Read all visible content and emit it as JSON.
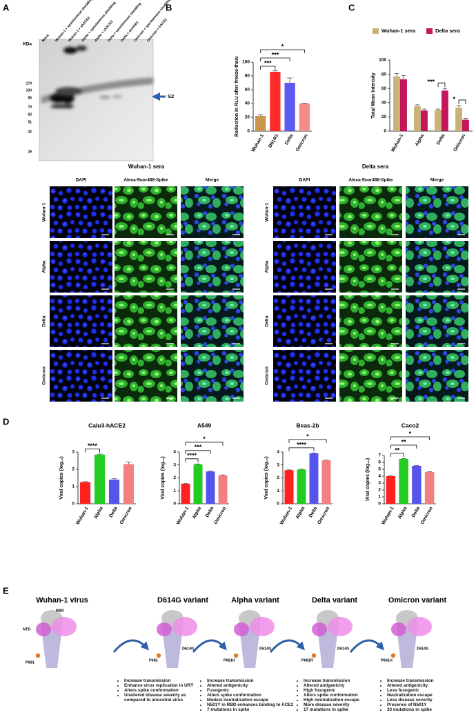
{
  "panel_labels": [
    "A",
    "B",
    "C",
    "D",
    "E"
  ],
  "blot": {
    "kda_label": "KDa",
    "lanes": [
      "Mock",
      "Wuhan-1 + spontaneous shedding",
      "Wuhan-1 + shACE2",
      "Alpha + spontaneous shedding",
      "Alpha + shACE2",
      "Delta + spontaneous shedding",
      "Delta + shACE2",
      "Omicron + spontaneous shedding",
      "Omicron + hACE2"
    ],
    "markers": [
      170,
      130,
      95,
      70,
      62,
      51,
      42,
      29
    ],
    "band_label": "S2"
  },
  "chart_data": [
    {
      "type": "bar",
      "ylabel": "Reduction in RLU after freeze-thaw",
      "categories": [
        "Wuhan-1",
        "D614G",
        "Delta",
        "Omicron"
      ],
      "values": [
        22,
        86,
        70,
        40
      ],
      "errors": [
        2,
        1.5,
        7,
        0.5
      ],
      "colors": [
        "#c8954a",
        "#ff2a2a",
        "#5a5af0",
        "#f58a8a"
      ],
      "ylim": [
        0,
        100
      ],
      "yticks": [
        0,
        20,
        40,
        60,
        80,
        100
      ],
      "comparisons": [
        {
          "from": 0,
          "to": 1,
          "label": "***"
        },
        {
          "from": 0,
          "to": 2,
          "label": "***"
        },
        {
          "from": 0,
          "to": 3,
          "label": "*"
        }
      ]
    },
    {
      "type": "grouped_bar",
      "ylabel": "Total Mean Intensity",
      "categories": [
        "Wuhan-1",
        "Alpha",
        "Delta",
        "Omicron"
      ],
      "series": [
        {
          "name": "Wuhan-1 sera",
          "color": "#c9b277",
          "values": [
            77,
            35,
            30,
            33
          ],
          "errors": [
            4,
            2,
            1,
            3
          ]
        },
        {
          "name": "Delta sera",
          "color": "#c2185b",
          "values": [
            73,
            29,
            57,
            16
          ],
          "errors": [
            5,
            2,
            3,
            2
          ]
        }
      ],
      "ylim": [
        0,
        100
      ],
      "yticks": [
        0,
        20,
        40,
        60,
        80,
        100
      ],
      "comparisons": [
        {
          "category": 2,
          "label": "***"
        },
        {
          "category": 3,
          "label": "*"
        }
      ]
    },
    {
      "type": "bar",
      "title": "Calu3-hACE2",
      "ylabel": "Viral copies (log₁₀)",
      "categories": [
        "Wuhan-1",
        "Alpha",
        "Delta",
        "Omicron"
      ],
      "values": [
        1.25,
        2.85,
        1.4,
        2.3
      ],
      "errors": [
        0.03,
        0.03,
        0.05,
        0.12
      ],
      "colors": [
        "#ff2020",
        "#22cc22",
        "#5555ee",
        "#f28080"
      ],
      "ylim": [
        0,
        3
      ],
      "yticks": [
        0,
        1,
        2,
        3
      ],
      "comparisons": [
        {
          "from": 0,
          "to": 1,
          "label": "****"
        }
      ]
    },
    {
      "type": "bar",
      "title": "A549",
      "ylabel": "Viral copies (log₁₀)",
      "categories": [
        "Wuhan-1",
        "Alpha",
        "Delta",
        "Omicron"
      ],
      "values": [
        1.55,
        3.05,
        2.5,
        2.2
      ],
      "errors": [
        0.02,
        0.03,
        0.03,
        0.03
      ],
      "colors": [
        "#ff2020",
        "#22cc22",
        "#5555ee",
        "#f28080"
      ],
      "ylim": [
        0,
        4
      ],
      "yticks": [
        0,
        1,
        2,
        3,
        4
      ],
      "comparisons": [
        {
          "from": 0,
          "to": 1,
          "label": "****"
        },
        {
          "from": 0,
          "to": 2,
          "label": "***"
        },
        {
          "from": 0,
          "to": 3,
          "label": "*"
        }
      ]
    },
    {
      "type": "bar",
      "title": "Beas-2b",
      "ylabel": "Viral copies (log₁₀)",
      "categories": [
        "Wuhan-1",
        "Alpha",
        "Delta",
        "Omicron"
      ],
      "values": [
        2.6,
        2.65,
        3.9,
        3.35
      ],
      "errors": [
        0.02,
        0.02,
        0.03,
        0.02
      ],
      "colors": [
        "#ff2020",
        "#22cc22",
        "#5555ee",
        "#f28080"
      ],
      "ylim": [
        0,
        4
      ],
      "yticks": [
        0,
        1,
        2,
        3,
        4
      ],
      "comparisons": [
        {
          "from": 0,
          "to": 2,
          "label": "****"
        },
        {
          "from": 0,
          "to": 3,
          "label": "*"
        }
      ]
    },
    {
      "type": "bar",
      "title": "Caco2",
      "ylabel": "Viral copies (log₁₀)",
      "categories": [
        "Wuhan-1",
        "Alpha",
        "Delta",
        "Omicron"
      ],
      "values": [
        4.0,
        6.5,
        5.5,
        4.6
      ],
      "errors": [
        0.05,
        0.05,
        0.03,
        0.03
      ],
      "colors": [
        "#ff2020",
        "#22cc22",
        "#5555ee",
        "#f28080"
      ],
      "ylim": [
        0,
        7
      ],
      "yticks": [
        0,
        1,
        2,
        3,
        4,
        5,
        6,
        7
      ],
      "comparisons": [
        {
          "from": 0,
          "to": 1,
          "label": "**"
        },
        {
          "from": 0,
          "to": 2,
          "label": "**"
        },
        {
          "from": 0,
          "to": 3,
          "label": "*"
        }
      ]
    }
  ],
  "microscopy": {
    "groups": [
      "Wuhan-1 sera",
      "Delta sera"
    ],
    "channels": [
      "DAPI",
      "Alexa-fluor488-Spike",
      "Merge"
    ],
    "rows": [
      "Wuhan-1",
      "Alpha",
      "Delta",
      "Omicron"
    ]
  },
  "variants": [
    {
      "title": "Wuhan-1 virus",
      "labels": [
        "NTD",
        "RBD",
        "P681"
      ]
    },
    {
      "title": "D614G variant",
      "labels": [
        "D614G",
        "P681"
      ],
      "features": [
        "Increase transmission",
        "Enhance virus replication in URT",
        "Alters spike conformation",
        "Unaltered disease severity as compared to ancestral virus"
      ]
    },
    {
      "title": "Alpha variant",
      "labels": [
        "D614G",
        "P681H"
      ],
      "features": [
        "Increase transmission",
        "Altered antigenicity",
        "Fusogenic",
        "Alters spike conformation",
        "Modest neutralization escape",
        "N501Y in RBD enhances binding to ACE2",
        "7 mutations in spike"
      ]
    },
    {
      "title": "Delta variant",
      "labels": [
        "D614G",
        "P681R"
      ],
      "features": [
        "Increase transmission",
        "Altered antigenicity",
        "High fusogenic",
        "Alters spike conformation",
        "High neutralization escape",
        "More disease severity",
        "17 mutations in spike"
      ]
    },
    {
      "title": "Omicron variant",
      "labels": [
        "D614G",
        "P681H"
      ],
      "features": [
        "Increase transmission",
        "Altered antigenicity",
        "Less fusogenic",
        "Neutralization escape",
        "Less disease severity",
        "Presence of N501Y",
        "33 mutations in spike"
      ]
    }
  ]
}
